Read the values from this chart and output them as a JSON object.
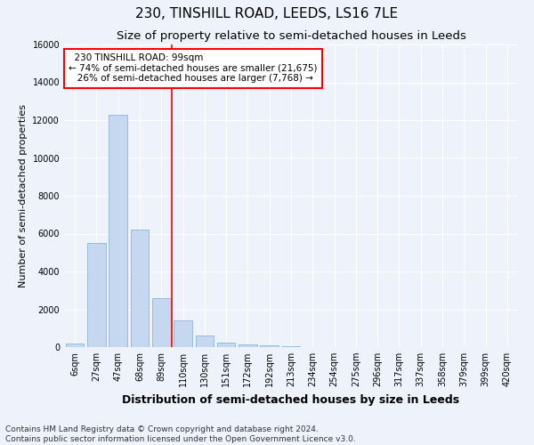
{
  "title": "230, TINSHILL ROAD, LEEDS, LS16 7LE",
  "subtitle": "Size of property relative to semi-detached houses in Leeds",
  "xlabel": "Distribution of semi-detached houses by size in Leeds",
  "ylabel": "Number of semi-detached properties",
  "bar_labels": [
    "6sqm",
    "27sqm",
    "47sqm",
    "68sqm",
    "89sqm",
    "110sqm",
    "130sqm",
    "151sqm",
    "172sqm",
    "192sqm",
    "213sqm",
    "234sqm",
    "254sqm",
    "275sqm",
    "296sqm",
    "317sqm",
    "337sqm",
    "358sqm",
    "379sqm",
    "399sqm",
    "420sqm"
  ],
  "bar_values": [
    200,
    5500,
    12300,
    6200,
    2600,
    1400,
    600,
    250,
    150,
    100,
    50,
    0,
    0,
    0,
    0,
    0,
    0,
    0,
    0,
    0,
    0
  ],
  "bar_color": "#c5d8f0",
  "bar_edge_color": "#7aadd4",
  "vline_color": "red",
  "vline_x": 4.5,
  "annotation_line1": "  230 TINSHILL ROAD: 99sqm",
  "annotation_line2": "← 74% of semi-detached houses are smaller (21,675)",
  "annotation_line3": "   26% of semi-detached houses are larger (7,768) →",
  "annotation_box_facecolor": "white",
  "annotation_box_edgecolor": "red",
  "ylim": [
    0,
    16000
  ],
  "yticks": [
    0,
    2000,
    4000,
    6000,
    8000,
    10000,
    12000,
    14000,
    16000
  ],
  "footer_line1": "Contains HM Land Registry data © Crown copyright and database right 2024.",
  "footer_line2": "Contains public sector information licensed under the Open Government Licence v3.0.",
  "title_fontsize": 11,
  "subtitle_fontsize": 9.5,
  "xlabel_fontsize": 9,
  "ylabel_fontsize": 8,
  "tick_fontsize": 7,
  "annotation_fontsize": 7.5,
  "footer_fontsize": 6.5,
  "background_color": "#edf2fb",
  "grid_color": "white"
}
